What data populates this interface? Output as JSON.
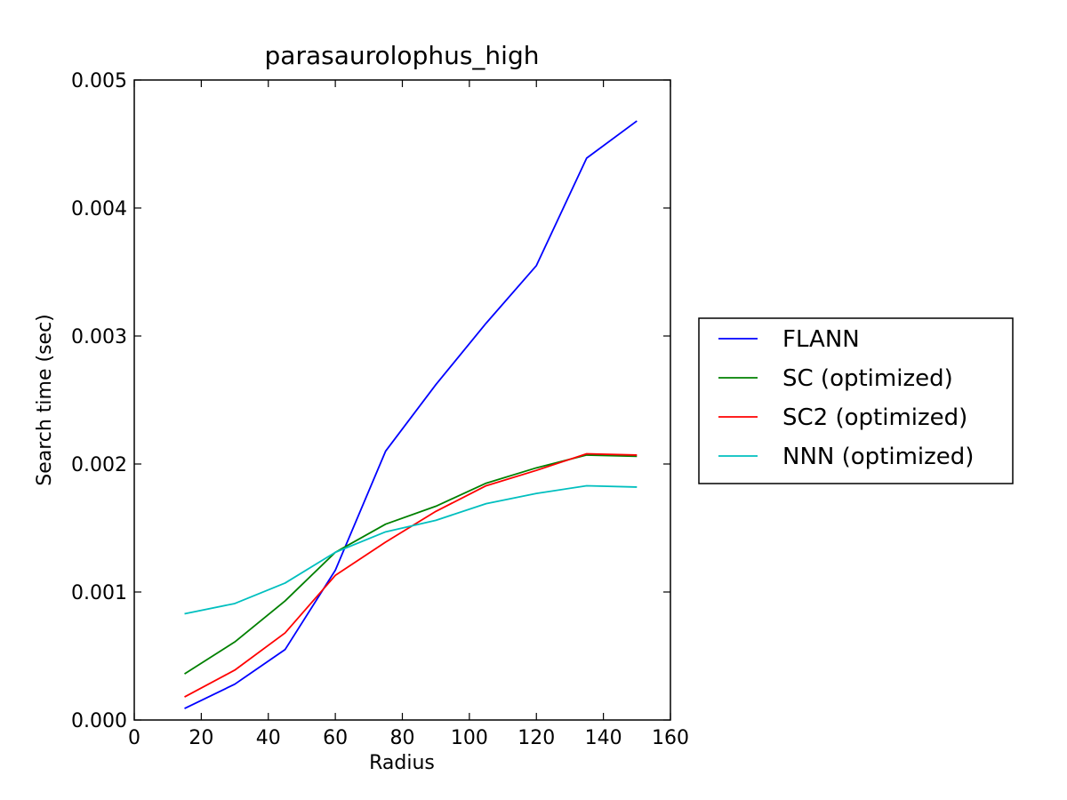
{
  "chart_data": {
    "type": "line",
    "title": "parasaurolophus_high",
    "xlabel": "Radius",
    "ylabel": "Search time (sec)",
    "xlim": [
      0,
      160
    ],
    "ylim": [
      0,
      0.005
    ],
    "xticks": [
      0,
      20,
      40,
      60,
      80,
      100,
      120,
      140,
      160
    ],
    "xtick_labels": [
      "0",
      "20",
      "40",
      "60",
      "80",
      "100",
      "120",
      "140",
      "160"
    ],
    "yticks": [
      0,
      0.001,
      0.002,
      0.003,
      0.004,
      0.005
    ],
    "ytick_labels": [
      "0.000",
      "0.001",
      "0.002",
      "0.003",
      "0.004",
      "0.005"
    ],
    "grid": false,
    "legend_position": "outside-right",
    "x": [
      15,
      30,
      45,
      60,
      75,
      90,
      105,
      120,
      135,
      150
    ],
    "series": [
      {
        "name": "FLANN",
        "color": "#0000ff",
        "values": [
          9e-05,
          0.00028,
          0.00055,
          0.00117,
          0.0021,
          0.00262,
          0.0031,
          0.00355,
          0.00439,
          0.00468
        ]
      },
      {
        "name": "SC (optimized)",
        "color": "#008000",
        "values": [
          0.00036,
          0.00061,
          0.00093,
          0.00131,
          0.00153,
          0.00167,
          0.00185,
          0.00197,
          0.00207,
          0.00206
        ]
      },
      {
        "name": "SC2 (optimized)",
        "color": "#ff0000",
        "values": [
          0.00018,
          0.00039,
          0.00068,
          0.00113,
          0.00139,
          0.00163,
          0.00183,
          0.00195,
          0.00208,
          0.00207
        ]
      },
      {
        "name": "NNN (optimized)",
        "color": "#00bfbf",
        "values": [
          0.00083,
          0.00091,
          0.00107,
          0.00131,
          0.00147,
          0.00156,
          0.00169,
          0.00177,
          0.00183,
          0.00182
        ]
      }
    ]
  }
}
